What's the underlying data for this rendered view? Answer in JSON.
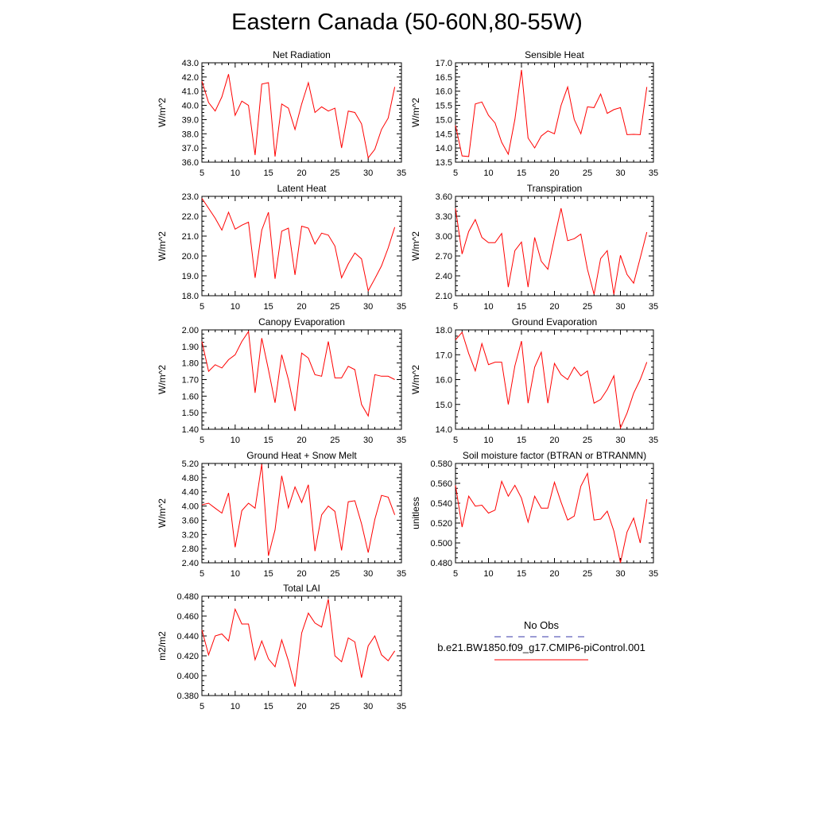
{
  "figure": {
    "title": "Eastern Canada (50-60N,80-55W)"
  },
  "legend": {
    "entries": [
      {
        "label": "No Obs",
        "style": "dashed",
        "color": "#3a3aa8"
      },
      {
        "label": "b.e21.BW1850.f09_g17.CMIP6-piControl.001",
        "style": "solid",
        "color": "#ff0000"
      }
    ]
  },
  "chart_data": [
    {
      "type": "line",
      "title": "Net Radiation",
      "ylabel": "W/m^2",
      "xlim": [
        5,
        35
      ],
      "ylim": [
        36.0,
        43.0
      ],
      "xticks": [
        5,
        10,
        15,
        20,
        25,
        30,
        35
      ],
      "yticks": [
        "36.0",
        "37.0",
        "38.0",
        "39.0",
        "40.0",
        "41.0",
        "42.0",
        "43.0"
      ],
      "series": [
        {
          "color": "#ff0000",
          "x": [
            5,
            6,
            7,
            8,
            9,
            10,
            11,
            12,
            13,
            14,
            15,
            16,
            17,
            18,
            19,
            20,
            21,
            22,
            23,
            24,
            25,
            26,
            27,
            28,
            29,
            30,
            31,
            32,
            33,
            34
          ],
          "values": [
            41.7,
            40.2,
            39.6,
            40.6,
            42.2,
            39.3,
            40.3,
            40.0,
            36.5,
            41.5,
            41.6,
            36.4,
            40.1,
            39.8,
            38.3,
            40.1,
            41.6,
            39.5,
            39.9,
            39.6,
            39.8,
            37.0,
            39.6,
            39.5,
            38.7,
            36.3,
            36.9,
            38.3,
            39.1,
            41.3
          ]
        }
      ]
    },
    {
      "type": "line",
      "title": "Sensible Heat",
      "ylabel": "W/m^2",
      "xlim": [
        5,
        35
      ],
      "ylim": [
        13.5,
        17.0
      ],
      "xticks": [
        5,
        10,
        15,
        20,
        25,
        30,
        35
      ],
      "yticks": [
        "13.5",
        "14.0",
        "14.5",
        "15.0",
        "15.5",
        "16.0",
        "16.5",
        "17.0"
      ],
      "series": [
        {
          "color": "#ff0000",
          "x": [
            5,
            6,
            7,
            8,
            9,
            10,
            11,
            12,
            13,
            14,
            15,
            16,
            17,
            18,
            19,
            20,
            21,
            22,
            23,
            24,
            25,
            26,
            27,
            28,
            29,
            30,
            31,
            32,
            33,
            34
          ],
          "values": [
            14.8,
            13.72,
            13.7,
            15.55,
            15.62,
            15.15,
            14.88,
            14.2,
            13.78,
            15.0,
            16.75,
            14.35,
            14.0,
            14.42,
            14.6,
            14.5,
            15.5,
            16.15,
            15.0,
            14.5,
            15.45,
            15.42,
            15.9,
            15.22,
            15.35,
            15.42,
            14.47,
            14.48,
            14.47,
            16.15
          ]
        }
      ]
    },
    {
      "type": "line",
      "title": "Latent Heat",
      "ylabel": "W/m^2",
      "xlim": [
        5,
        35
      ],
      "ylim": [
        18.0,
        23.0
      ],
      "xticks": [
        5,
        10,
        15,
        20,
        25,
        30,
        35
      ],
      "yticks": [
        "18.0",
        "19.0",
        "20.0",
        "21.0",
        "22.0",
        "23.0"
      ],
      "series": [
        {
          "color": "#ff0000",
          "x": [
            5,
            6,
            7,
            8,
            9,
            10,
            11,
            12,
            13,
            14,
            15,
            16,
            17,
            18,
            19,
            20,
            21,
            22,
            23,
            24,
            25,
            26,
            27,
            28,
            29,
            30,
            31,
            32,
            33,
            34
          ],
          "values": [
            22.9,
            22.4,
            21.9,
            21.3,
            22.2,
            21.35,
            21.55,
            21.7,
            18.9,
            21.3,
            22.2,
            18.85,
            21.25,
            21.4,
            19.05,
            21.5,
            21.4,
            20.6,
            21.15,
            21.05,
            20.5,
            18.9,
            19.6,
            20.15,
            19.85,
            18.25,
            18.85,
            19.5,
            20.4,
            21.45
          ]
        }
      ]
    },
    {
      "type": "line",
      "title": "Transpiration",
      "ylabel": "W/m^2",
      "xlim": [
        5,
        35
      ],
      "ylim": [
        2.1,
        3.6
      ],
      "xticks": [
        5,
        10,
        15,
        20,
        25,
        30,
        35
      ],
      "yticks": [
        "2.10",
        "2.40",
        "2.70",
        "3.00",
        "3.30",
        "3.60"
      ],
      "series": [
        {
          "color": "#ff0000",
          "x": [
            5,
            6,
            7,
            8,
            9,
            10,
            11,
            12,
            13,
            14,
            15,
            16,
            17,
            18,
            19,
            20,
            21,
            22,
            23,
            24,
            25,
            26,
            27,
            28,
            29,
            30,
            31,
            32,
            33,
            34
          ],
          "values": [
            3.42,
            2.73,
            3.07,
            3.25,
            2.98,
            2.9,
            2.9,
            3.04,
            2.23,
            2.78,
            2.91,
            2.23,
            2.98,
            2.62,
            2.5,
            2.97,
            3.42,
            2.93,
            2.96,
            3.03,
            2.5,
            2.12,
            2.66,
            2.78,
            2.12,
            2.71,
            2.42,
            2.29,
            2.67,
            3.06
          ]
        }
      ]
    },
    {
      "type": "line",
      "title": "Canopy Evaporation",
      "ylabel": "W/m^2",
      "xlim": [
        5,
        35
      ],
      "ylim": [
        1.4,
        2.0
      ],
      "xticks": [
        5,
        10,
        15,
        20,
        25,
        30,
        35
      ],
      "yticks": [
        "1.40",
        "1.50",
        "1.60",
        "1.70",
        "1.80",
        "1.90",
        "2.00"
      ],
      "series": [
        {
          "color": "#ff0000",
          "x": [
            5,
            6,
            7,
            8,
            9,
            10,
            11,
            12,
            13,
            14,
            15,
            16,
            17,
            18,
            19,
            20,
            21,
            22,
            23,
            24,
            25,
            26,
            27,
            28,
            29,
            30,
            31,
            32,
            33,
            34
          ],
          "values": [
            1.93,
            1.75,
            1.79,
            1.77,
            1.82,
            1.85,
            1.93,
            1.99,
            1.62,
            1.95,
            1.76,
            1.56,
            1.85,
            1.7,
            1.51,
            1.86,
            1.83,
            1.73,
            1.72,
            1.93,
            1.71,
            1.71,
            1.78,
            1.76,
            1.55,
            1.48,
            1.73,
            1.72,
            1.72,
            1.7
          ]
        }
      ]
    },
    {
      "type": "line",
      "title": "Ground Evaporation",
      "ylabel": "W/m^2",
      "xlim": [
        5,
        35
      ],
      "ylim": [
        14.0,
        18.0
      ],
      "xticks": [
        5,
        10,
        15,
        20,
        25,
        30,
        35
      ],
      "yticks": [
        "14.0",
        "15.0",
        "16.0",
        "17.0",
        "18.0"
      ],
      "series": [
        {
          "color": "#ff0000",
          "x": [
            5,
            6,
            7,
            8,
            9,
            10,
            11,
            12,
            13,
            14,
            15,
            16,
            17,
            18,
            19,
            20,
            21,
            22,
            23,
            24,
            25,
            26,
            27,
            28,
            29,
            30,
            31,
            32,
            33,
            34
          ],
          "values": [
            17.6,
            17.9,
            17.05,
            16.35,
            17.45,
            16.6,
            16.7,
            16.7,
            15.0,
            16.55,
            17.55,
            15.05,
            16.5,
            17.1,
            15.05,
            16.65,
            16.2,
            16.0,
            16.5,
            16.15,
            16.35,
            15.05,
            15.2,
            15.6,
            16.15,
            14.05,
            14.65,
            15.45,
            16.0,
            16.7
          ]
        }
      ]
    },
    {
      "type": "line",
      "title": "Ground Heat + Snow Melt",
      "ylabel": "W/m^2",
      "xlim": [
        5,
        35
      ],
      "ylim": [
        2.4,
        5.2
      ],
      "xticks": [
        5,
        10,
        15,
        20,
        25,
        30,
        35
      ],
      "yticks": [
        "2.40",
        "2.80",
        "3.20",
        "3.60",
        "4.00",
        "4.40",
        "4.80",
        "5.20"
      ],
      "series": [
        {
          "color": "#ff0000",
          "x": [
            5,
            6,
            7,
            8,
            9,
            10,
            11,
            12,
            13,
            14,
            15,
            16,
            17,
            18,
            19,
            20,
            21,
            22,
            23,
            24,
            25,
            26,
            27,
            28,
            29,
            30,
            31,
            32,
            33,
            34
          ],
          "values": [
            4.03,
            4.08,
            3.94,
            3.8,
            4.37,
            2.84,
            3.87,
            4.08,
            3.94,
            5.18,
            2.6,
            3.33,
            4.85,
            3.95,
            4.54,
            4.1,
            4.6,
            2.73,
            3.75,
            4.0,
            3.85,
            2.75,
            4.12,
            4.15,
            3.5,
            2.69,
            3.62,
            4.3,
            4.25,
            3.75
          ]
        }
      ]
    },
    {
      "type": "line",
      "title": "Soil moisture factor (BTRAN or BTRANMN)",
      "ylabel": "unitless",
      "xlim": [
        5,
        35
      ],
      "ylim": [
        0.48,
        0.58
      ],
      "xticks": [
        5,
        10,
        15,
        20,
        25,
        30,
        35
      ],
      "yticks": [
        "0.480",
        "0.500",
        "0.520",
        "0.540",
        "0.560",
        "0.580"
      ],
      "series": [
        {
          "color": "#ff0000",
          "x": [
            5,
            6,
            7,
            8,
            9,
            10,
            11,
            12,
            13,
            14,
            15,
            16,
            17,
            18,
            19,
            20,
            21,
            22,
            23,
            24,
            25,
            26,
            27,
            28,
            29,
            30,
            31,
            32,
            33,
            34
          ],
          "values": [
            0.558,
            0.516,
            0.547,
            0.537,
            0.538,
            0.53,
            0.533,
            0.562,
            0.547,
            0.558,
            0.545,
            0.521,
            0.547,
            0.535,
            0.535,
            0.561,
            0.541,
            0.523,
            0.527,
            0.557,
            0.57,
            0.523,
            0.524,
            0.532,
            0.512,
            0.48,
            0.511,
            0.525,
            0.5,
            0.544
          ]
        }
      ]
    },
    {
      "type": "line",
      "title": "Total LAI",
      "ylabel": "m2/m2",
      "xlim": [
        5,
        35
      ],
      "ylim": [
        0.38,
        0.48
      ],
      "xticks": [
        5,
        10,
        15,
        20,
        25,
        30,
        35
      ],
      "yticks": [
        "0.380",
        "0.400",
        "0.420",
        "0.440",
        "0.460",
        "0.480"
      ],
      "series": [
        {
          "color": "#ff0000",
          "x": [
            5,
            6,
            7,
            8,
            9,
            10,
            11,
            12,
            13,
            14,
            15,
            16,
            17,
            18,
            19,
            20,
            21,
            22,
            23,
            24,
            25,
            26,
            27,
            28,
            29,
            30,
            31,
            32,
            33,
            34
          ],
          "values": [
            0.446,
            0.421,
            0.44,
            0.442,
            0.435,
            0.467,
            0.452,
            0.452,
            0.416,
            0.435,
            0.417,
            0.409,
            0.436,
            0.415,
            0.389,
            0.443,
            0.463,
            0.453,
            0.449,
            0.477,
            0.42,
            0.414,
            0.438,
            0.434,
            0.398,
            0.43,
            0.44,
            0.421,
            0.415,
            0.425
          ]
        }
      ]
    }
  ]
}
